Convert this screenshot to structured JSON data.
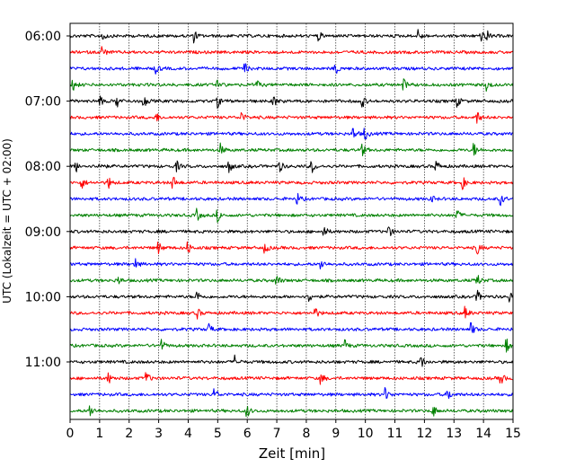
{
  "chart_data": {
    "type": "line",
    "title": "",
    "xlabel": "Zeit  [min]",
    "ylabel": "UTC (Lokalzeit = UTC + 02:00)",
    "xlim": [
      0,
      15
    ],
    "x_ticks": [
      "0",
      "1",
      "2",
      "3",
      "4",
      "5",
      "6",
      "7",
      "8",
      "9",
      "10",
      "11",
      "12",
      "13",
      "14",
      "15"
    ],
    "y_ticks": [
      "06:00",
      "07:00",
      "08:00",
      "09:00",
      "10:00",
      "11:00"
    ],
    "grid_x": true,
    "trace_interval_min": 15,
    "trace_colors": [
      "#000000",
      "#ff0000",
      "#0000ff",
      "#008000"
    ],
    "traces": [
      {
        "start": "06:00",
        "color": "#000000",
        "events": [
          1.1,
          4.2,
          8.4,
          11.8,
          13.9,
          14.1
        ]
      },
      {
        "start": "06:15",
        "color": "#ff0000",
        "events": [
          1.1
        ]
      },
      {
        "start": "06:30",
        "color": "#0000ff",
        "events": [
          2.9,
          5.9,
          9.0
        ]
      },
      {
        "start": "06:45",
        "color": "#008000",
        "events": [
          0.1,
          5.0,
          6.3,
          11.3,
          14.1
        ]
      },
      {
        "start": "07:00",
        "color": "#000000",
        "events": [
          1.0,
          1.6,
          2.5,
          5.0,
          6.9,
          9.9,
          13.1
        ]
      },
      {
        "start": "07:15",
        "color": "#ff0000",
        "events": [
          2.9,
          5.8,
          13.8
        ]
      },
      {
        "start": "07:30",
        "color": "#0000ff",
        "events": [
          9.6,
          10.0
        ]
      },
      {
        "start": "07:45",
        "color": "#008000",
        "events": [
          5.1,
          9.9,
          13.7
        ]
      },
      {
        "start": "08:00",
        "color": "#000000",
        "events": [
          0.2,
          1.0,
          3.6,
          5.4,
          7.1,
          8.2,
          12.4
        ]
      },
      {
        "start": "08:15",
        "color": "#ff0000",
        "events": [
          0.4,
          1.3,
          3.5,
          13.3
        ]
      },
      {
        "start": "08:30",
        "color": "#0000ff",
        "events": [
          7.7,
          12.2,
          14.6
        ]
      },
      {
        "start": "08:45",
        "color": "#008000",
        "events": [
          4.3,
          5.0,
          13.1
        ]
      },
      {
        "start": "09:00",
        "color": "#000000",
        "events": [
          8.6,
          10.8
        ]
      },
      {
        "start": "09:15",
        "color": "#ff0000",
        "events": [
          3.0,
          4.0,
          6.6,
          13.8
        ]
      },
      {
        "start": "09:30",
        "color": "#0000ff",
        "events": [
          2.2,
          8.5
        ]
      },
      {
        "start": "09:45",
        "color": "#008000",
        "events": [
          1.6,
          7.0,
          13.8
        ]
      },
      {
        "start": "10:00",
        "color": "#000000",
        "events": [
          4.3,
          8.1,
          13.8,
          14.9
        ]
      },
      {
        "start": "10:15",
        "color": "#ff0000",
        "events": [
          4.3,
          8.3,
          13.4
        ]
      },
      {
        "start": "10:30",
        "color": "#0000ff",
        "events": [
          4.7,
          13.6
        ]
      },
      {
        "start": "10:45",
        "color": "#008000",
        "events": [
          3.1,
          9.3,
          14.8
        ]
      },
      {
        "start": "11:00",
        "color": "#000000",
        "events": [
          5.6,
          11.9
        ]
      },
      {
        "start": "11:15",
        "color": "#ff0000",
        "events": [
          1.3,
          2.6,
          8.5,
          14.6
        ]
      },
      {
        "start": "11:30",
        "color": "#0000ff",
        "events": [
          4.9,
          10.7,
          12.8
        ]
      },
      {
        "start": "11:45",
        "color": "#008000",
        "events": [
          0.7,
          6.0,
          12.3
        ]
      }
    ]
  }
}
